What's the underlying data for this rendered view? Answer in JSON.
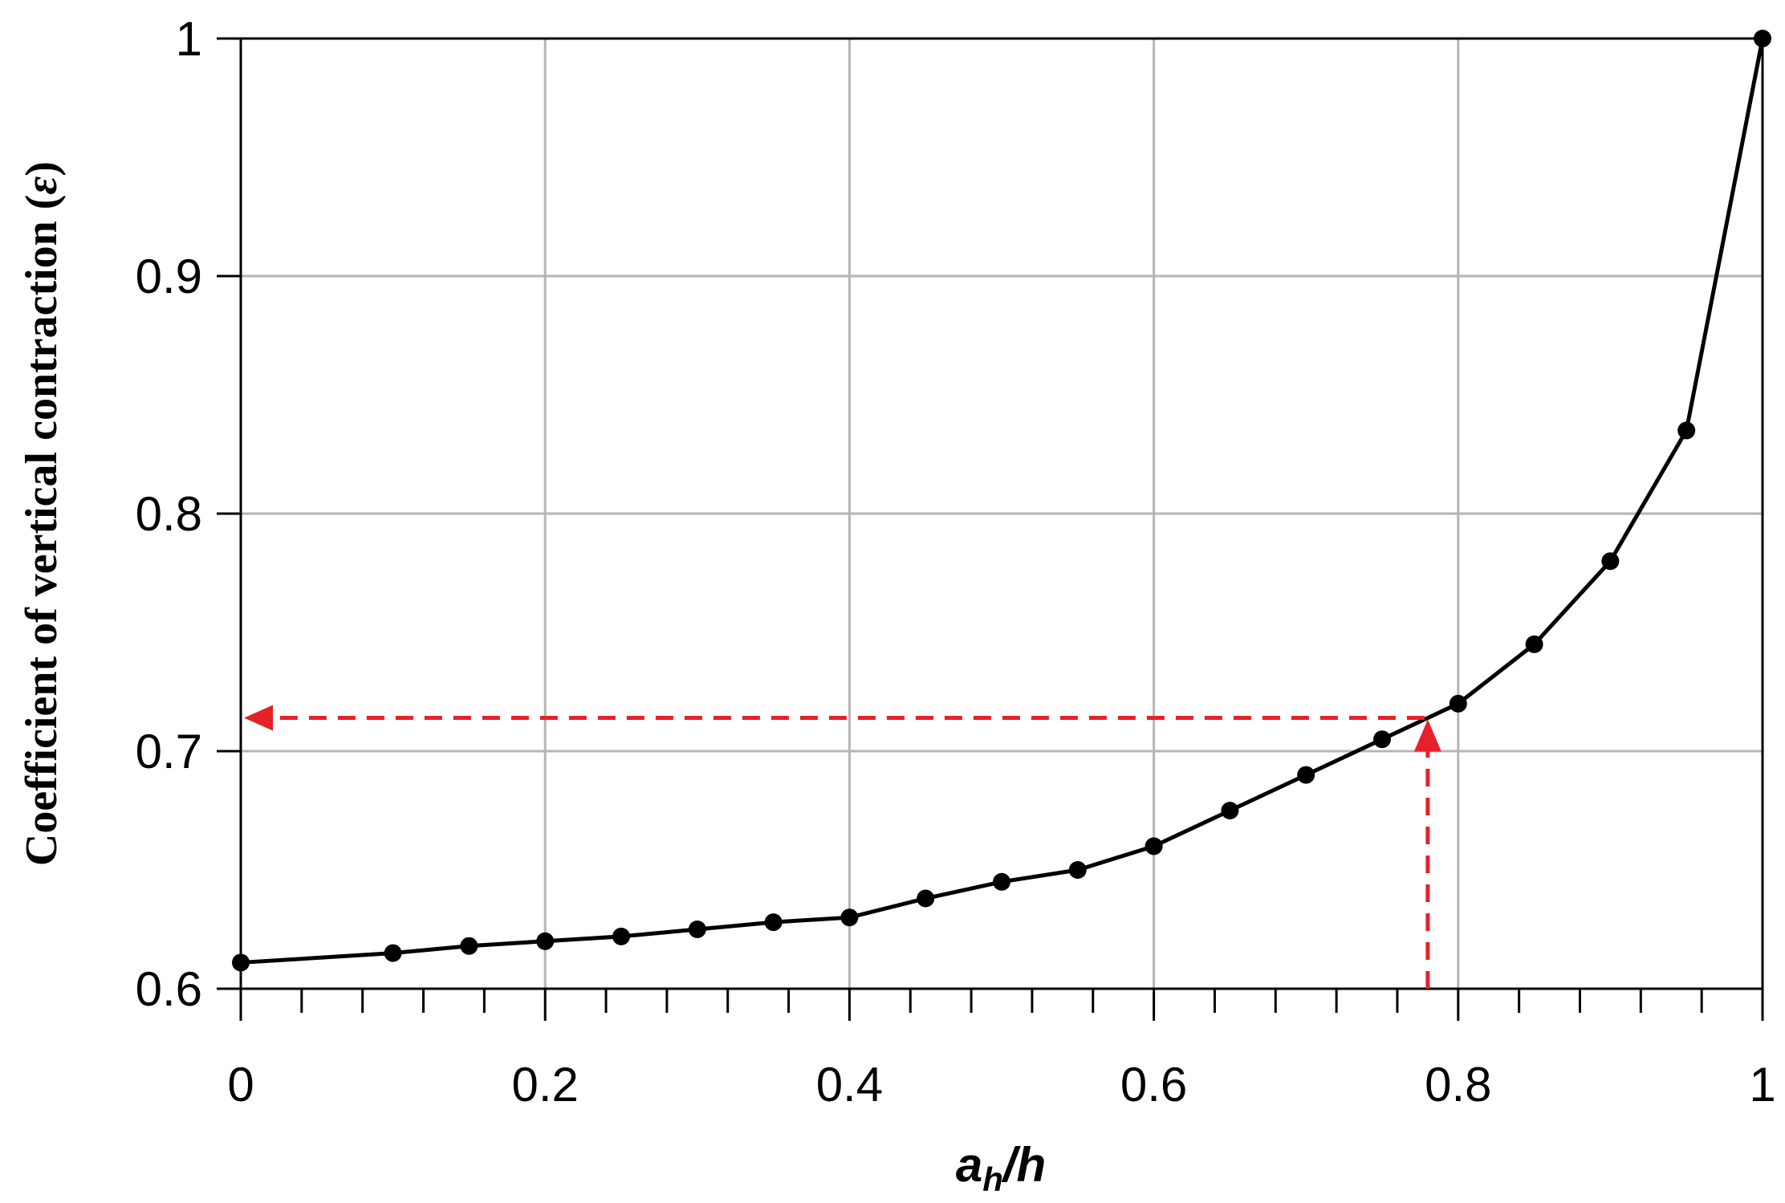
{
  "chart_data": {
    "type": "line",
    "title": "",
    "xlabel": {
      "main": "a",
      "subscript": "h",
      "suffix": "/h"
    },
    "ylabel": {
      "text": "Coefficient of vertical contraction (",
      "symbol": "ε",
      "close": ")"
    },
    "xlim": [
      0,
      1
    ],
    "ylim": [
      0.6,
      1.0
    ],
    "x_ticks": [
      0,
      0.2,
      0.4,
      0.6,
      0.8,
      1
    ],
    "x_tick_labels": [
      "0",
      "0.2",
      "0.4",
      "0.6",
      "0.8",
      "1"
    ],
    "y_ticks": [
      0.6,
      0.7,
      0.8,
      0.9,
      1.0
    ],
    "y_tick_labels": [
      "0.6",
      "0.7",
      "0.8",
      "0.9",
      "1"
    ],
    "x_minor_step": 0.04,
    "y_minor_step": 0.02,
    "grid": true,
    "series": [
      {
        "color": "#000000",
        "marker": "circle",
        "x": [
          0,
          0.1,
          0.15,
          0.2,
          0.25,
          0.3,
          0.35,
          0.4,
          0.45,
          0.5,
          0.55,
          0.6,
          0.65,
          0.7,
          0.75,
          0.8,
          0.85,
          0.9,
          0.95,
          1.0
        ],
        "y": [
          0.611,
          0.615,
          0.618,
          0.62,
          0.622,
          0.625,
          0.628,
          0.63,
          0.638,
          0.645,
          0.65,
          0.66,
          0.675,
          0.69,
          0.705,
          0.72,
          0.745,
          0.78,
          0.835,
          1.0
        ]
      }
    ],
    "annotation": {
      "type": "dashed-guide-arrows",
      "color": "#e8202a",
      "x": 0.78,
      "y": 0.714
    }
  }
}
